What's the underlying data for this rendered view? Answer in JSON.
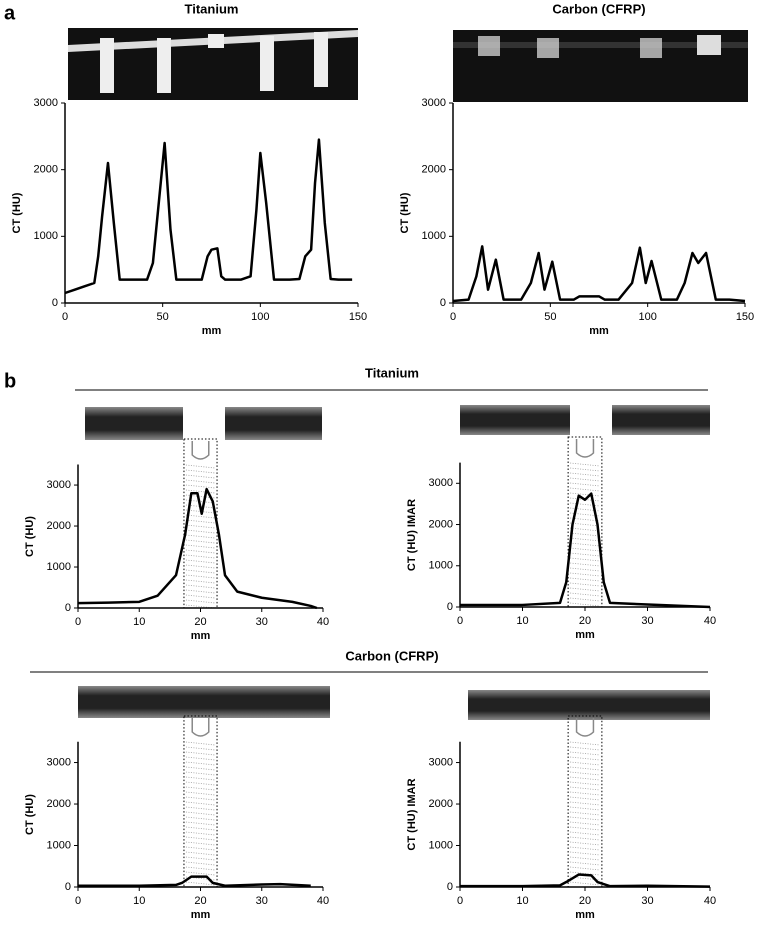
{
  "panel_labels": [
    "a",
    "b"
  ],
  "section_titles": [
    "Titanium",
    "Carbon (CFRP)"
  ],
  "chart_data": [
    {
      "type": "line",
      "title": "Titanium",
      "xlabel": "mm",
      "ylabel": "CT (HU)",
      "xlim": [
        0,
        150
      ],
      "ylim": [
        0,
        3000
      ],
      "xticks": [
        0,
        50,
        100,
        150
      ],
      "yticks": [
        0,
        1000,
        2000,
        3000
      ],
      "x": [
        0,
        5,
        10,
        15,
        17,
        19,
        22,
        25,
        28,
        35,
        42,
        45,
        48,
        51,
        54,
        57,
        65,
        70,
        73,
        75,
        78,
        80,
        82,
        90,
        95,
        98,
        100,
        103,
        107,
        115,
        120,
        123,
        126,
        128,
        130,
        133,
        136,
        140,
        147
      ],
      "series": [
        {
          "color": "#000000",
          "values": [
            150,
            200,
            250,
            300,
            700,
            1300,
            2100,
            1200,
            350,
            350,
            350,
            600,
            1500,
            2400,
            1100,
            350,
            350,
            350,
            700,
            800,
            820,
            400,
            350,
            350,
            400,
            1400,
            2250,
            1500,
            350,
            350,
            360,
            700,
            800,
            1800,
            2450,
            1200,
            360,
            350,
            350
          ]
        }
      ]
    },
    {
      "type": "line",
      "title": "Carbon (CFRP)",
      "xlabel": "mm",
      "ylabel": "CT (HU)",
      "xlim": [
        0,
        150
      ],
      "ylim": [
        0,
        3000
      ],
      "xticks": [
        0,
        50,
        100,
        150
      ],
      "yticks": [
        0,
        1000,
        2000,
        3000
      ],
      "x": [
        0,
        8,
        12,
        15,
        18,
        22,
        26,
        35,
        40,
        44,
        47,
        51,
        55,
        62,
        65,
        75,
        78,
        85,
        92,
        96,
        99,
        102,
        107,
        115,
        119,
        123,
        126,
        130,
        135,
        142,
        150
      ],
      "series": [
        {
          "color": "#000000",
          "values": [
            30,
            50,
            400,
            850,
            200,
            650,
            50,
            50,
            300,
            750,
            200,
            620,
            50,
            50,
            100,
            100,
            50,
            50,
            300,
            830,
            300,
            630,
            50,
            50,
            300,
            750,
            600,
            750,
            50,
            50,
            30
          ]
        }
      ]
    },
    {
      "type": "line",
      "xlabel": "mm",
      "ylabel": "CT (HU)",
      "xlim": [
        0,
        40
      ],
      "ylim": [
        0,
        3500
      ],
      "xticks": [
        0,
        10,
        20,
        30,
        40
      ],
      "yticks": [
        0,
        1000,
        2000,
        3000
      ],
      "x": [
        0,
        5,
        10,
        13,
        16,
        17.5,
        18.5,
        19.5,
        20.2,
        21,
        22,
        23,
        24,
        26,
        30,
        35,
        38,
        39
      ],
      "series": [
        {
          "color": "#000000",
          "values": [
            120,
            130,
            150,
            300,
            800,
            1800,
            2800,
            2800,
            2300,
            2900,
            2600,
            1800,
            800,
            400,
            250,
            150,
            50,
            0
          ]
        }
      ]
    },
    {
      "type": "line",
      "xlabel": "mm",
      "ylabel": "CT (HU) IMAR",
      "xlim": [
        0,
        40
      ],
      "ylim": [
        0,
        3500
      ],
      "xticks": [
        0,
        10,
        20,
        30,
        40
      ],
      "yticks": [
        0,
        1000,
        2000,
        3000
      ],
      "x": [
        0,
        10,
        16,
        17,
        18,
        19,
        20,
        21,
        22,
        23,
        24,
        30,
        40
      ],
      "series": [
        {
          "color": "#000000",
          "values": [
            50,
            50,
            100,
            600,
            2000,
            2700,
            2600,
            2750,
            2000,
            600,
            100,
            60,
            0
          ]
        }
      ]
    },
    {
      "type": "line",
      "xlabel": "mm",
      "ylabel": "CT (HU)",
      "xlim": [
        0,
        40
      ],
      "ylim": [
        0,
        3500
      ],
      "xticks": [
        0,
        10,
        20,
        30,
        40
      ],
      "yticks": [
        0,
        1000,
        2000,
        3000
      ],
      "x": [
        0,
        10,
        16,
        17,
        18.5,
        21,
        22,
        24,
        30,
        33,
        38
      ],
      "series": [
        {
          "color": "#000000",
          "values": [
            30,
            30,
            50,
            100,
            250,
            250,
            100,
            30,
            60,
            70,
            30
          ]
        }
      ]
    },
    {
      "type": "line",
      "xlabel": "mm",
      "ylabel": "CT (HU) IMAR",
      "xlim": [
        0,
        40
      ],
      "ylim": [
        0,
        3500
      ],
      "xticks": [
        0,
        10,
        20,
        30,
        40
      ],
      "yticks": [
        0,
        1000,
        2000,
        3000
      ],
      "x": [
        0,
        10,
        16,
        17,
        19,
        21,
        22,
        24,
        30,
        40
      ],
      "series": [
        {
          "color": "#000000",
          "values": [
            20,
            20,
            40,
            120,
            300,
            280,
            120,
            20,
            30,
            10
          ]
        }
      ]
    }
  ]
}
